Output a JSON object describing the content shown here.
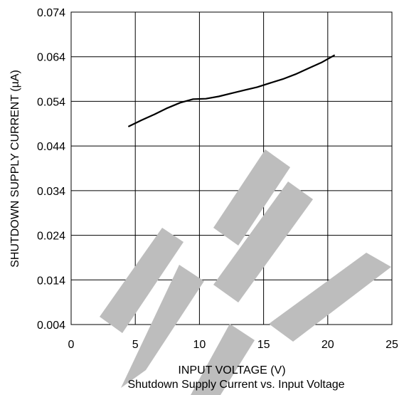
{
  "chart_data": {
    "type": "line",
    "title": "",
    "caption": "Shutdown Supply Current vs. Input Voltage",
    "xlabel": "INPUT VOLTAGE (V)",
    "ylabel": "SHUTDOWN SUPPLY CURRENT (µA)",
    "xlim": [
      0,
      25
    ],
    "ylim": [
      0.004,
      0.074
    ],
    "xticks": [
      0,
      5,
      10,
      15,
      20,
      25
    ],
    "xtick_labels": [
      "0",
      "5",
      "10",
      "15",
      "20",
      "25"
    ],
    "yticks": [
      0.004,
      0.014,
      0.024,
      0.034,
      0.044,
      0.054,
      0.064,
      0.074
    ],
    "ytick_labels": [
      "0.004",
      "0.014",
      "0.024",
      "0.034",
      "0.044",
      "0.054",
      "0.064",
      "0.074"
    ],
    "grid": true,
    "legend": "none",
    "series": [
      {
        "color": "#000000",
        "x": [
          4.5,
          5.5,
          6.5,
          7.5,
          8.5,
          9.5,
          10.5,
          11.5,
          12.5,
          13.5,
          14.5,
          15.5,
          16.5,
          17.5,
          18.5,
          19.5,
          20.5
        ],
        "y": [
          0.0484,
          0.0498,
          0.0511,
          0.0525,
          0.0537,
          0.0545,
          0.0546,
          0.0551,
          0.0558,
          0.0565,
          0.0572,
          0.0581,
          0.059,
          0.0601,
          0.0614,
          0.0627,
          0.0643
        ]
      }
    ],
    "watermark": {
      "text": "LITE",
      "color": "#bdbdbd"
    }
  }
}
